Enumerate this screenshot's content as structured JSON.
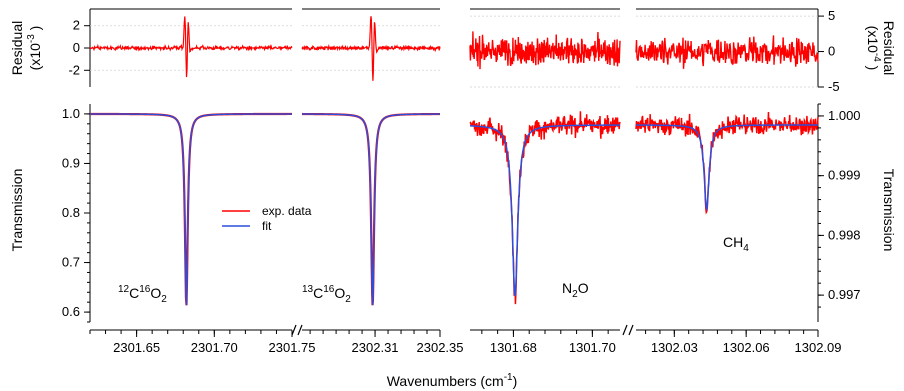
{
  "chart_data": {
    "type": "line",
    "xlabel_main": "Wavenumbers (cm",
    "xlabel_sup": "-1",
    "xlabel_close": ")",
    "legend": [
      {
        "label": "exp. data",
        "color": "#ff0000"
      },
      {
        "label": "fit",
        "color": "#2b4fdc"
      }
    ],
    "left": {
      "ylabel_transmission": "Transmission",
      "ylabel_residual": "Residual",
      "residual_scale_pre": "(x10",
      "residual_scale_exp": "-3",
      "residual_scale_post": " )",
      "trans_ylim": [
        0.58,
        1.02
      ],
      "trans_ticks": [
        "1.0",
        "0.9",
        "0.8",
        "0.7",
        "0.6"
      ],
      "trans_tick_values": [
        1.0,
        0.9,
        0.8,
        0.7,
        0.6
      ],
      "res_ylim": [
        -3.5,
        3.5
      ],
      "res_ticks": [
        "2",
        "0",
        "-2"
      ],
      "res_tick_values": [
        2,
        0,
        -2
      ],
      "segments": [
        {
          "xlim": [
            2301.62,
            2301.75
          ],
          "xticks": [
            "2301.65",
            "2301.70",
            "2301.75"
          ],
          "xtick_values": [
            2301.65,
            2301.7,
            2301.75
          ],
          "line_center": 2301.682,
          "line_depth": 0.39,
          "line_width": 0.0011,
          "molecule": {
            "pre": "12",
            "a": "C",
            "mid": "16",
            "b": "O",
            "sub": "2"
          }
        },
        {
          "xlim": [
            2302.265,
            2302.35
          ],
          "xticks": [
            "2302.31",
            "2302.35"
          ],
          "xtick_values": [
            2302.31,
            2302.35
          ],
          "line_center": 2302.3085,
          "line_depth": 0.387,
          "line_width": 0.0011,
          "molecule": {
            "pre": "13",
            "a": "C",
            "mid": "16",
            "b": "O",
            "sub": "2"
          }
        }
      ]
    },
    "right": {
      "ylabel_transmission": "Transmission",
      "ylabel_residual": "Residual",
      "residual_scale_pre": "(x10",
      "residual_scale_exp": "-4",
      "residual_scale_post": " )",
      "trans_ylim": [
        0.99655,
        1.0002
      ],
      "trans_ticks": [
        "1.000",
        "0.999",
        "0.998",
        "0.997"
      ],
      "trans_tick_values": [
        1.0,
        0.999,
        0.998,
        0.997
      ],
      "res_ylim": [
        -5,
        6
      ],
      "res_ticks": [
        "5",
        "0",
        "-5"
      ],
      "res_tick_values": [
        5,
        0,
        -5
      ],
      "segments": [
        {
          "xlim": [
            1301.669,
            1301.707
          ],
          "xticks": [
            "1301.68",
            "1301.70"
          ],
          "xtick_values": [
            1301.68,
            1301.7
          ],
          "line_center": 1301.6804,
          "line_depth": 0.00286,
          "line_width": 0.00085,
          "molecule": {
            "a": "N",
            "sub": "2",
            "b": "O"
          }
        },
        {
          "xlim": [
            1302.014,
            1302.09
          ],
          "xticks": [
            "1302.03",
            "1302.06",
            "1302.09"
          ],
          "xtick_values": [
            1302.03,
            1302.06,
            1302.09
          ],
          "line_center": 1302.0435,
          "line_depth": 0.00141,
          "line_width": 0.00125,
          "molecule": {
            "a": "CH",
            "sub": "4"
          }
        }
      ]
    }
  }
}
